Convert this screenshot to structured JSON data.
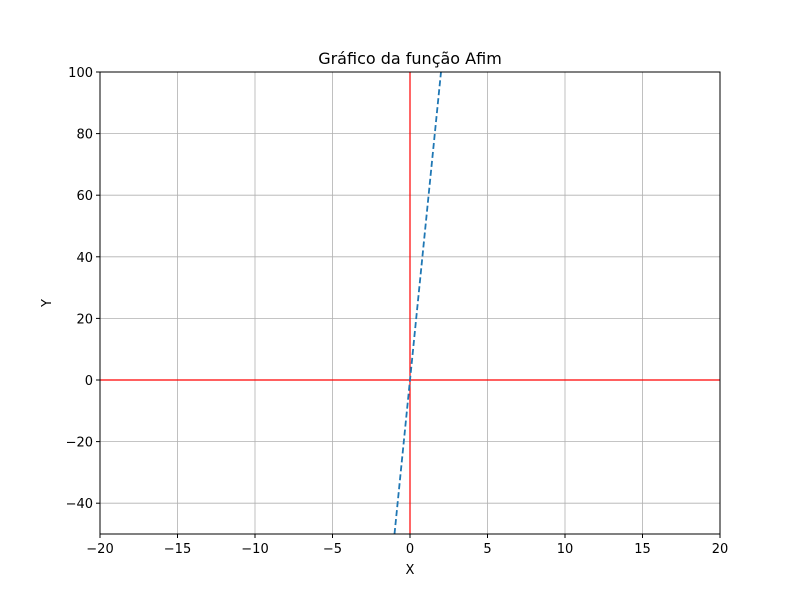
{
  "chart_data": {
    "type": "line",
    "title": "Gráfico da função Afim",
    "x_label": "X",
    "y_label": "Y",
    "x": [
      -1,
      2
    ],
    "series": [
      {
        "name": "y",
        "color": "#1f77b4",
        "dash": "dashed",
        "values": [
          -50,
          100
        ]
      }
    ],
    "xlim": [
      -20,
      20
    ],
    "xticks": [
      {
        "value": -20,
        "label": "−20"
      },
      {
        "value": -15,
        "label": "−15"
      },
      {
        "value": -10,
        "label": "−10"
      },
      {
        "value": -5,
        "label": "−5"
      },
      0,
      5,
      10,
      15,
      20
    ],
    "ylim": [
      -50,
      100
    ],
    "yticks": [
      {
        "value": -40,
        "label": "−40"
      },
      {
        "value": -20,
        "label": "−20"
      },
      0,
      20,
      40,
      60,
      80,
      100
    ],
    "grid": true,
    "reference_lines": [
      {
        "axis": "y",
        "value": 0,
        "color": "red"
      },
      {
        "axis": "x",
        "value": 0,
        "color": "red"
      }
    ],
    "legend": false
  }
}
